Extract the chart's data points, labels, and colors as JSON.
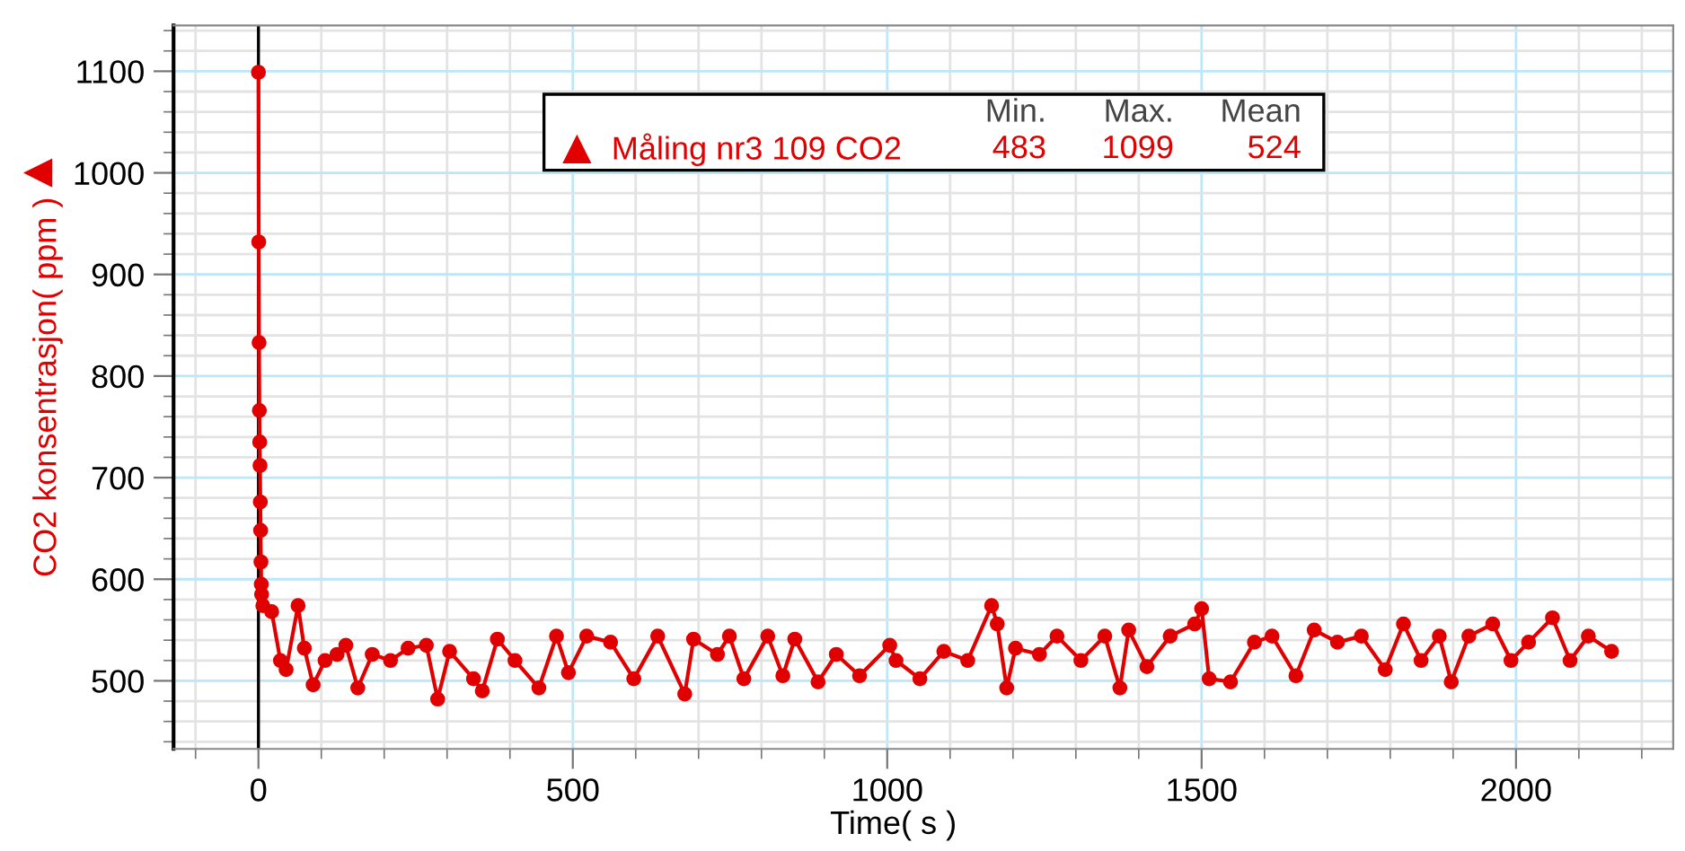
{
  "chart_data": {
    "type": "line",
    "xlabel": "Time( s )",
    "ylabel": "CO2 konsentrasjon( ppm )",
    "xlim": [
      -135,
      2250
    ],
    "ylim": [
      433,
      1145
    ],
    "xticks": [
      0,
      500,
      1000,
      1500,
      2000
    ],
    "yticks": [
      500,
      600,
      700,
      800,
      900,
      1000,
      1100
    ],
    "grid": true,
    "legend": "top",
    "marker": "circle",
    "line_style": "solid",
    "ref_lines": [
      {
        "axis": "x",
        "value": 0,
        "color": "#000000"
      }
    ],
    "annotations": [
      "Min.",
      "Max.",
      "Mean",
      "483",
      "1099",
      "524"
    ],
    "series": [
      {
        "name": "Måling nr3 109 CO2",
        "color": "#e00000",
        "x": [
          0,
          0.5,
          1,
          1.5,
          2,
          2.5,
          3,
          3.5,
          4,
          4.5,
          5,
          7,
          21,
          35,
          44,
          63,
          73,
          87,
          106,
          125,
          139,
          158,
          181,
          210,
          238,
          267,
          285,
          304,
          342,
          356,
          380,
          408,
          446,
          474,
          493,
          522,
          560,
          597,
          635,
          678,
          692,
          730,
          749,
          772,
          810,
          834,
          853,
          890,
          919,
          956,
          1004,
          1014,
          1052,
          1090,
          1128,
          1166,
          1175,
          1190,
          1204,
          1242,
          1270,
          1308,
          1346,
          1370,
          1384,
          1413,
          1450,
          1489,
          1500,
          1512,
          1546,
          1584,
          1612,
          1650,
          1679,
          1716,
          1754,
          1792,
          1821,
          1849,
          1878,
          1897,
          1925,
          1963,
          1992,
          2020,
          2058,
          2086,
          2115,
          2152
        ],
        "values": [
          1099,
          932,
          833,
          766,
          735,
          712,
          676,
          648,
          617,
          595,
          585,
          574,
          568,
          520,
          511,
          574,
          532,
          496,
          520,
          526,
          535,
          493,
          526,
          520,
          532,
          535,
          482,
          529,
          502,
          490,
          541,
          520,
          493,
          544,
          508,
          544,
          538,
          502,
          544,
          487,
          541,
          526,
          544,
          502,
          544,
          505,
          541,
          499,
          526,
          505,
          535,
          520,
          502,
          529,
          520,
          574,
          556,
          493,
          532,
          526,
          544,
          520,
          544,
          493,
          550,
          514,
          544,
          556,
          571,
          502,
          499,
          538,
          544,
          505,
          550,
          538,
          544,
          511,
          556,
          520,
          544,
          499,
          544,
          556,
          520,
          538,
          562,
          520,
          544,
          529
        ]
      }
    ]
  }
}
